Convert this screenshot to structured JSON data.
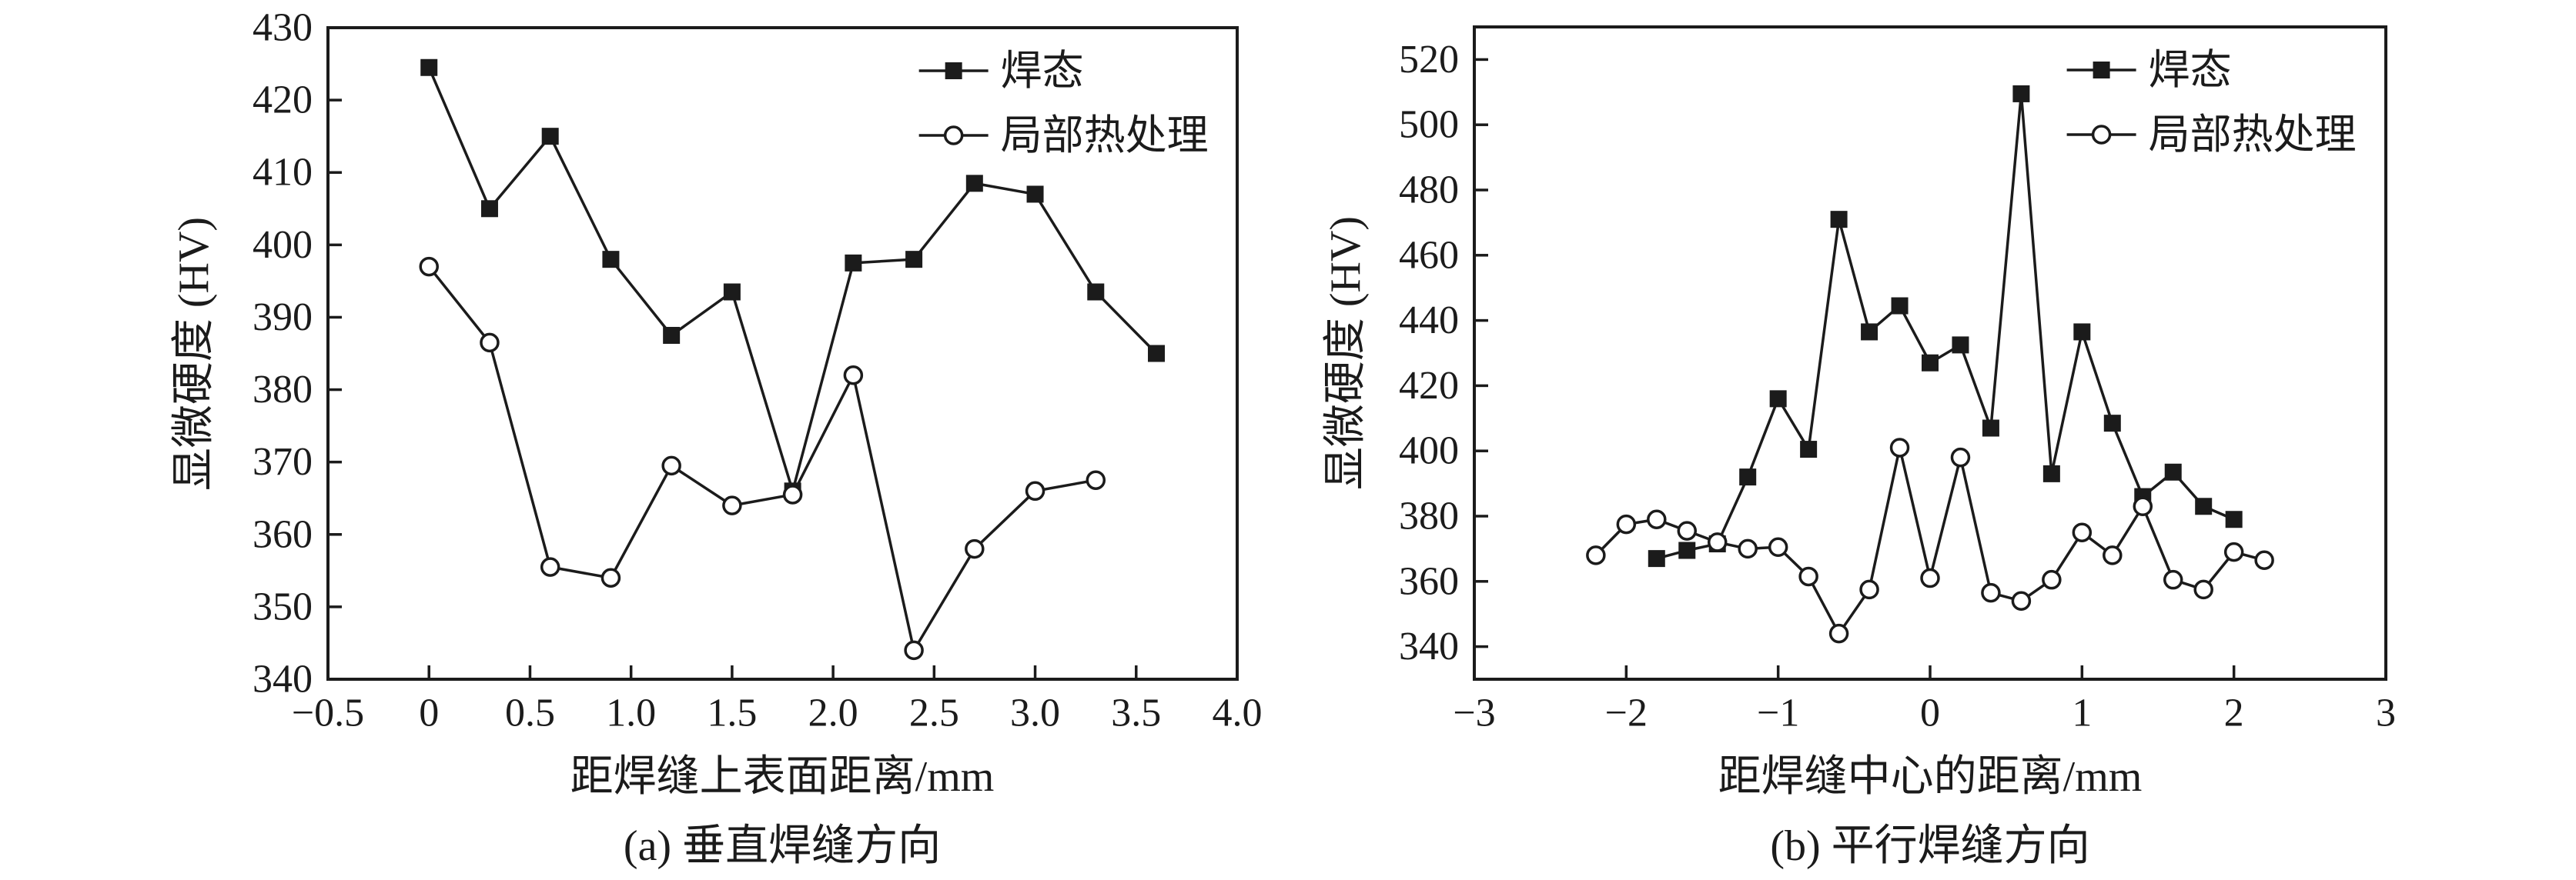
{
  "figure": {
    "background": "#ffffff",
    "ink": "#1b1b1b"
  },
  "chart_data": [
    {
      "id": "a",
      "type": "line",
      "caption": "(a) 垂直焊缝方向",
      "xlabel": "距焊缝上表面距离/mm",
      "ylabel": "显微硬度 (HV)",
      "xlim": [
        -0.5,
        4.0
      ],
      "ylim": [
        340,
        430
      ],
      "xtick_vals": [
        -0.5,
        0,
        0.5,
        1.0,
        1.5,
        2.0,
        2.5,
        3.0,
        3.5,
        4.0
      ],
      "xtick_labels": [
        "−0.5",
        "0",
        "0.5",
        "1.0",
        "1.5",
        "2.0",
        "2.5",
        "3.0",
        "3.5",
        "4.0"
      ],
      "ytick_vals": [
        340,
        350,
        360,
        370,
        380,
        390,
        400,
        410,
        420,
        430
      ],
      "ytick_labels": [
        "340",
        "350",
        "360",
        "370",
        "380",
        "390",
        "400",
        "410",
        "420",
        "430"
      ],
      "grid": false,
      "legend_position": "inside-top-right",
      "series": [
        {
          "name": "焊态",
          "marker": "filled-square",
          "x": [
            0,
            0.3,
            0.6,
            0.9,
            1.2,
            1.5,
            1.8,
            2.1,
            2.4,
            2.7,
            3.0,
            3.3,
            3.6
          ],
          "y": [
            424.5,
            405,
            415,
            398,
            387.5,
            393.5,
            366,
            397.5,
            398,
            408.5,
            407,
            393.5,
            385
          ]
        },
        {
          "name": "局部热处理",
          "marker": "open-circle",
          "x": [
            0,
            0.3,
            0.6,
            0.9,
            1.2,
            1.5,
            1.8,
            2.1,
            2.4,
            2.7,
            3.0,
            3.3
          ],
          "y": [
            397,
            386.5,
            355.5,
            354,
            369.5,
            364,
            365.5,
            382,
            344,
            358,
            366,
            367.5
          ]
        }
      ]
    },
    {
      "id": "b",
      "type": "line",
      "caption": "(b) 平行焊缝方向",
      "xlabel": "距焊缝中心的距离/mm",
      "ylabel": "显微硬度 (HV)",
      "xlim": [
        -3,
        3
      ],
      "ylim": [
        330,
        530
      ],
      "xtick_vals": [
        -3,
        -2,
        -1,
        0,
        1,
        2,
        3
      ],
      "xtick_labels": [
        "−3",
        "−2",
        "−1",
        "0",
        "1",
        "2",
        "3"
      ],
      "ytick_vals": [
        340,
        360,
        380,
        400,
        420,
        440,
        460,
        480,
        500,
        520
      ],
      "ytick_labels": [
        "340",
        "360",
        "380",
        "400",
        "420",
        "440",
        "460",
        "480",
        "500",
        "520"
      ],
      "grid": false,
      "legend_position": "inside-top-right",
      "series": [
        {
          "name": "焊态",
          "marker": "filled-square",
          "x": [
            -1.8,
            -1.6,
            -1.4,
            -1.2,
            -1.0,
            -0.8,
            -0.6,
            -0.4,
            -0.2,
            0,
            0.2,
            0.4,
            0.6,
            0.8,
            1.0,
            1.2,
            1.4,
            1.6,
            1.8,
            2.0
          ],
          "y": [
            367,
            369.5,
            371.5,
            392,
            416,
            400.5,
            471,
            436.5,
            444.5,
            427,
            432.5,
            407,
            509.5,
            393,
            436.5,
            408.5,
            386,
            393.5,
            383,
            379
          ]
        },
        {
          "name": "局部热处理",
          "marker": "open-circle",
          "x": [
            -2.2,
            -2.0,
            -1.8,
            -1.6,
            -1.4,
            -1.2,
            -1.0,
            -0.8,
            -0.6,
            -0.4,
            -0.2,
            0,
            0.2,
            0.4,
            0.6,
            0.8,
            1.0,
            1.2,
            1.4,
            1.6,
            1.8,
            2.0,
            2.2
          ],
          "y": [
            368,
            377.5,
            379,
            375.5,
            372,
            370,
            370.5,
            361.5,
            344,
            357.5,
            401,
            361,
            398,
            356.5,
            354,
            360.5,
            375,
            368,
            383,
            360.5,
            357.5,
            369,
            366.5
          ]
        }
      ]
    }
  ]
}
